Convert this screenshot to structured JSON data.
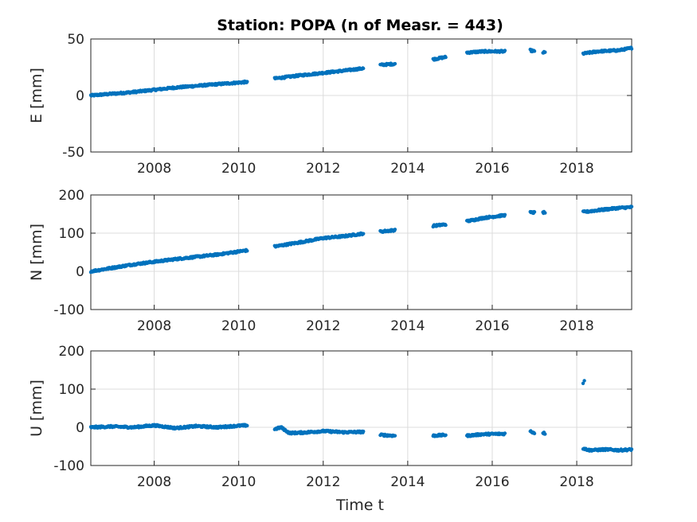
{
  "chart_data": {
    "type": "scatter",
    "title": "Station: POPA (n of Measr. = 443)",
    "xlabel": "Time t",
    "xlim": [
      2006.5,
      2019.3
    ],
    "xticks": [
      2008,
      2010,
      2012,
      2014,
      2016,
      2018
    ],
    "grid": true,
    "marker_color": "#0072bd",
    "segments": [
      [
        2006.5,
        2010.2
      ],
      [
        2010.85,
        2012.95
      ],
      [
        2013.35,
        2013.7
      ],
      [
        2014.6,
        2014.9
      ],
      [
        2015.4,
        2016.3
      ],
      [
        2016.9,
        2017.0
      ],
      [
        2017.2,
        2017.25
      ],
      [
        2018.15,
        2019.3
      ]
    ],
    "panels": [
      {
        "ylabel": "E [mm]",
        "ylim": [
          -50,
          50
        ],
        "yticks": [
          -50,
          0,
          50
        ],
        "series": [
          {
            "x": [
              2006.5,
              2007.5,
              2008.5,
              2009.5,
              2010.2,
              2010.85,
              2011.5,
              2012.0,
              2012.5,
              2012.95,
              2013.35,
              2013.7,
              2014.6,
              2014.9,
              2015.4,
              2015.8,
              2016.3,
              2016.9,
              2017.0,
              2017.2,
              2018.15,
              2018.5,
              2019.0,
              2019.3
            ],
            "y": [
              0,
              3,
              7,
              10,
              12,
              15,
              18,
              20,
              22,
              24,
              27,
              28,
              32,
              34,
              38,
              39,
              39,
              40,
              39,
              38,
              37,
              39,
              40,
              42
            ]
          }
        ]
      },
      {
        "ylabel": "N [mm]",
        "ylim": [
          -100,
          200
        ],
        "yticks": [
          -100,
          0,
          100,
          200
        ],
        "series": [
          {
            "x": [
              2006.5,
              2007.5,
              2008.5,
              2009.5,
              2010.2,
              2010.85,
              2011.5,
              2012.0,
              2012.5,
              2012.95,
              2013.35,
              2013.7,
              2014.6,
              2014.9,
              2015.4,
              2015.8,
              2016.3,
              2016.9,
              2017.0,
              2017.2,
              2018.15,
              2018.5,
              2019.0,
              2019.3
            ],
            "y": [
              0,
              18,
              32,
              44,
              55,
              65,
              77,
              87,
              92,
              99,
              104,
              108,
              119,
              123,
              131,
              140,
              147,
              154,
              154,
              154,
              155,
              160,
              166,
              168
            ]
          }
        ]
      },
      {
        "ylabel": "U [mm]",
        "ylim": [
          -100,
          200
        ],
        "yticks": [
          -100,
          0,
          100,
          200
        ],
        "series": [
          {
            "x": [
              2006.5,
              2007.0,
              2007.5,
              2008.0,
              2008.5,
              2009.0,
              2009.5,
              2010.0,
              2010.2,
              2010.85,
              2011.0,
              2011.2,
              2011.5,
              2012.0,
              2012.5,
              2012.95,
              2013.35,
              2013.7,
              2014.6,
              2014.9,
              2015.4,
              2015.8,
              2016.3,
              2016.9,
              2017.0,
              2017.2,
              2018.15,
              2018.3,
              2018.7,
              2019.0,
              2019.3
            ],
            "y": [
              0,
              2,
              0,
              5,
              -2,
              3,
              0,
              4,
              5,
              -5,
              0,
              -15,
              -14,
              -10,
              -13,
              -12,
              -20,
              -22,
              -22,
              -20,
              -22,
              -18,
              -17,
              -10,
              -15,
              -14,
              -55,
              -60,
              -58,
              -60,
              -58
            ]
          },
          {
            "x": [
              2018.15,
              2018.18
            ],
            "y": [
              115,
              122
            ]
          }
        ]
      }
    ]
  }
}
